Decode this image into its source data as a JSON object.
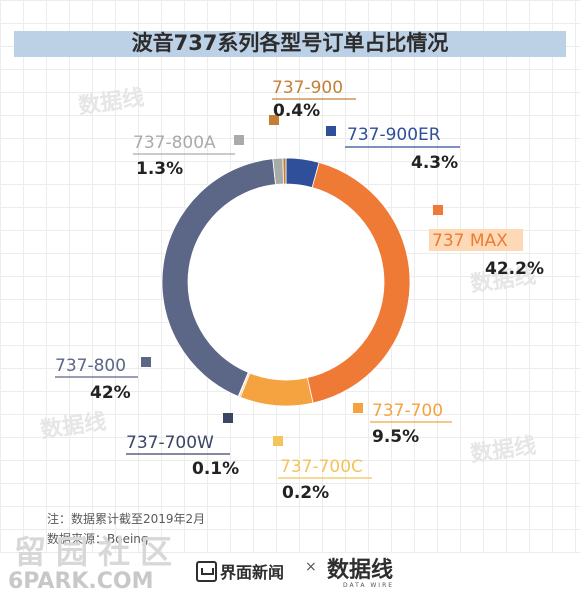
{
  "chart_data": {
    "type": "pie",
    "title": "波音737系列各型号订单占比情况",
    "slices": [
      {
        "label": "737-900ER",
        "value": 4.3,
        "display": "4.3%",
        "color": "#2f4f9a"
      },
      {
        "label": "737 MAX",
        "value": 42.2,
        "display": "42.2%",
        "color": "#ef7a35"
      },
      {
        "label": "737-700",
        "value": 9.5,
        "display": "9.5%",
        "color": "#f4a340"
      },
      {
        "label": "737-700C",
        "value": 0.2,
        "display": "0.2%",
        "color": "#f4c35a"
      },
      {
        "label": "737-700W",
        "value": 0.1,
        "display": "0.1%",
        "color": "#3a4664"
      },
      {
        "label": "737-800",
        "value": 42,
        "display": "42%",
        "color": "#5c6686"
      },
      {
        "label": "737-800A",
        "value": 1.3,
        "display": "1.3%",
        "color": "#a8aca8"
      },
      {
        "label": "737-900",
        "value": 0.4,
        "display": "0.4%",
        "color": "#c47f36"
      }
    ]
  },
  "footer": {
    "note": "注：数据累计截至2019年2月",
    "source": "数据来源：Boeing",
    "brand": "界面新闻",
    "cross": "×",
    "brand2": "数据线",
    "brand2_sub": "DATA WIRE"
  },
  "watermark": {
    "cn": "留园社区",
    "en": "6PARK.COM"
  }
}
